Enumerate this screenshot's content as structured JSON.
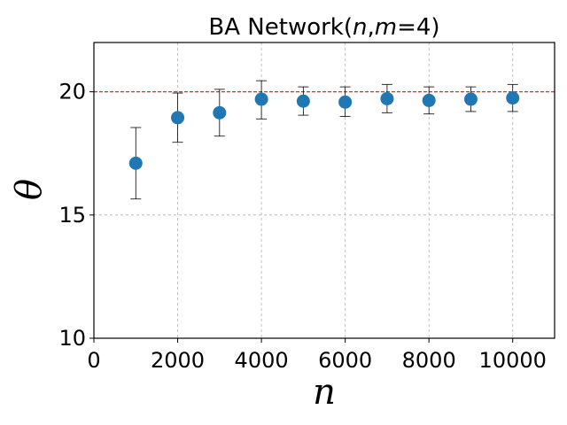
{
  "chart_data": {
    "type": "scatter",
    "title_prefix": "BA Network(",
    "title_n": "n",
    "title_sep": ",",
    "title_m": "m",
    "title_suffix": "=4)",
    "xlabel": "n",
    "ylabel": "θ",
    "xlim": [
      0,
      11000
    ],
    "ylim": [
      10,
      22
    ],
    "xticks": [
      0,
      2000,
      4000,
      6000,
      8000,
      10000
    ],
    "yticks": [
      10,
      15,
      20
    ],
    "grid": true,
    "reference_line": {
      "y": 20,
      "color": "#e31a1c",
      "style": "dashed"
    },
    "series": [
      {
        "color": "#1f77b4",
        "x": [
          1000,
          2000,
          3000,
          4000,
          5000,
          6000,
          7000,
          8000,
          9000,
          10000
        ],
        "y": [
          17.1,
          18.95,
          19.15,
          19.7,
          19.62,
          19.58,
          19.72,
          19.65,
          19.7,
          19.75
        ],
        "err_low": [
          15.65,
          17.95,
          18.2,
          18.9,
          19.05,
          19.0,
          19.15,
          19.1,
          19.2,
          19.2
        ],
        "err_high": [
          18.55,
          19.95,
          20.1,
          20.45,
          20.2,
          20.2,
          20.3,
          20.2,
          20.2,
          20.3
        ]
      }
    ]
  }
}
